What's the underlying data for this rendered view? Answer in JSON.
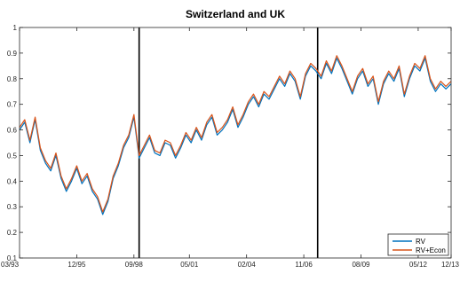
{
  "chart_data": {
    "type": "line",
    "title": "Switzerland and UK",
    "xlabel": "",
    "ylabel": "",
    "ylim": [
      0.1,
      1.0
    ],
    "yticks": [
      0.1,
      0.2,
      0.3,
      0.4,
      0.5,
      0.6,
      0.7,
      0.8,
      0.9,
      1
    ],
    "yticklabels": [
      "0.1",
      "0.2",
      "0.3",
      "0.4",
      "0.5",
      "0.6",
      "0.7",
      "0.8",
      "0.9",
      "1"
    ],
    "xlim": [
      "1993-03",
      "2013-12"
    ],
    "xticks": [
      "1993-03",
      "1995-12",
      "1998-09",
      "2001-05",
      "2004-02",
      "2006-11",
      "2009-08",
      "2012-05",
      "2013-12"
    ],
    "xticklabels": [
      "03/93",
      "12/95",
      "09/98",
      "05/01",
      "02/04",
      "11/06",
      "08/09",
      "05/12",
      "12/13"
    ],
    "vertical_lines": [
      "1998-12",
      "2007-07"
    ],
    "legend_position": "bottom-right",
    "grid": false,
    "series": [
      {
        "name": "RV",
        "color": "#0072BD",
        "points": [
          [
            "1993-03",
            0.6
          ],
          [
            "1993-06",
            0.63
          ],
          [
            "1993-09",
            0.55
          ],
          [
            "1993-12",
            0.64
          ],
          [
            "1994-03",
            0.52
          ],
          [
            "1994-06",
            0.47
          ],
          [
            "1994-09",
            0.44
          ],
          [
            "1994-12",
            0.5
          ],
          [
            "1995-03",
            0.41
          ],
          [
            "1995-06",
            0.36
          ],
          [
            "1995-09",
            0.4
          ],
          [
            "1995-12",
            0.45
          ],
          [
            "1996-03",
            0.39
          ],
          [
            "1996-06",
            0.42
          ],
          [
            "1996-09",
            0.36
          ],
          [
            "1996-12",
            0.33
          ],
          [
            "1997-03",
            0.27
          ],
          [
            "1997-06",
            0.32
          ],
          [
            "1997-09",
            0.41
          ],
          [
            "1997-12",
            0.46
          ],
          [
            "1998-03",
            0.53
          ],
          [
            "1998-06",
            0.57
          ],
          [
            "1998-09",
            0.65
          ],
          [
            "1998-12",
            0.49
          ],
          [
            "1999-03",
            0.53
          ],
          [
            "1999-06",
            0.57
          ],
          [
            "1999-09",
            0.51
          ],
          [
            "1999-12",
            0.5
          ],
          [
            "2000-03",
            0.55
          ],
          [
            "2000-06",
            0.54
          ],
          [
            "2000-09",
            0.49
          ],
          [
            "2000-12",
            0.53
          ],
          [
            "2001-03",
            0.58
          ],
          [
            "2001-06",
            0.55
          ],
          [
            "2001-09",
            0.6
          ],
          [
            "2001-12",
            0.56
          ],
          [
            "2002-03",
            0.62
          ],
          [
            "2002-06",
            0.65
          ],
          [
            "2002-09",
            0.58
          ],
          [
            "2002-12",
            0.6
          ],
          [
            "2003-03",
            0.63
          ],
          [
            "2003-06",
            0.68
          ],
          [
            "2003-09",
            0.61
          ],
          [
            "2003-12",
            0.65
          ],
          [
            "2004-03",
            0.7
          ],
          [
            "2004-06",
            0.73
          ],
          [
            "2004-09",
            0.69
          ],
          [
            "2004-12",
            0.74
          ],
          [
            "2005-03",
            0.72
          ],
          [
            "2005-06",
            0.76
          ],
          [
            "2005-09",
            0.8
          ],
          [
            "2005-12",
            0.77
          ],
          [
            "2006-03",
            0.82
          ],
          [
            "2006-06",
            0.79
          ],
          [
            "2006-09",
            0.72
          ],
          [
            "2006-12",
            0.81
          ],
          [
            "2007-03",
            0.85
          ],
          [
            "2007-06",
            0.83
          ],
          [
            "2007-09",
            0.8
          ],
          [
            "2007-12",
            0.86
          ],
          [
            "2008-03",
            0.82
          ],
          [
            "2008-06",
            0.88
          ],
          [
            "2008-09",
            0.84
          ],
          [
            "2008-12",
            0.79
          ],
          [
            "2009-03",
            0.74
          ],
          [
            "2009-06",
            0.8
          ],
          [
            "2009-09",
            0.83
          ],
          [
            "2009-12",
            0.77
          ],
          [
            "2010-03",
            0.8
          ],
          [
            "2010-06",
            0.7
          ],
          [
            "2010-09",
            0.78
          ],
          [
            "2010-12",
            0.82
          ],
          [
            "2011-03",
            0.79
          ],
          [
            "2011-06",
            0.84
          ],
          [
            "2011-09",
            0.73
          ],
          [
            "2011-12",
            0.8
          ],
          [
            "2012-03",
            0.85
          ],
          [
            "2012-06",
            0.83
          ],
          [
            "2012-09",
            0.88
          ],
          [
            "2012-12",
            0.79
          ],
          [
            "2013-03",
            0.75
          ],
          [
            "2013-06",
            0.78
          ],
          [
            "2013-09",
            0.76
          ],
          [
            "2013-12",
            0.78
          ]
        ]
      },
      {
        "name": "RV+Econ",
        "color": "#D95319",
        "points": [
          [
            "1993-03",
            0.61
          ],
          [
            "1993-06",
            0.64
          ],
          [
            "1993-09",
            0.56
          ],
          [
            "1993-12",
            0.65
          ],
          [
            "1994-03",
            0.53
          ],
          [
            "1994-06",
            0.48
          ],
          [
            "1994-09",
            0.45
          ],
          [
            "1994-12",
            0.51
          ],
          [
            "1995-03",
            0.42
          ],
          [
            "1995-06",
            0.37
          ],
          [
            "1995-09",
            0.41
          ],
          [
            "1995-12",
            0.46
          ],
          [
            "1996-03",
            0.4
          ],
          [
            "1996-06",
            0.43
          ],
          [
            "1996-09",
            0.37
          ],
          [
            "1996-12",
            0.34
          ],
          [
            "1997-03",
            0.28
          ],
          [
            "1997-06",
            0.33
          ],
          [
            "1997-09",
            0.42
          ],
          [
            "1997-12",
            0.47
          ],
          [
            "1998-03",
            0.54
          ],
          [
            "1998-06",
            0.58
          ],
          [
            "1998-09",
            0.66
          ],
          [
            "1998-12",
            0.5
          ],
          [
            "1999-03",
            0.54
          ],
          [
            "1999-06",
            0.58
          ],
          [
            "1999-09",
            0.52
          ],
          [
            "1999-12",
            0.51
          ],
          [
            "2000-03",
            0.56
          ],
          [
            "2000-06",
            0.55
          ],
          [
            "2000-09",
            0.5
          ],
          [
            "2000-12",
            0.54
          ],
          [
            "2001-03",
            0.59
          ],
          [
            "2001-06",
            0.56
          ],
          [
            "2001-09",
            0.61
          ],
          [
            "2001-12",
            0.57
          ],
          [
            "2002-03",
            0.63
          ],
          [
            "2002-06",
            0.66
          ],
          [
            "2002-09",
            0.59
          ],
          [
            "2002-12",
            0.61
          ],
          [
            "2003-03",
            0.64
          ],
          [
            "2003-06",
            0.69
          ],
          [
            "2003-09",
            0.62
          ],
          [
            "2003-12",
            0.66
          ],
          [
            "2004-03",
            0.71
          ],
          [
            "2004-06",
            0.74
          ],
          [
            "2004-09",
            0.7
          ],
          [
            "2004-12",
            0.75
          ],
          [
            "2005-03",
            0.73
          ],
          [
            "2005-06",
            0.77
          ],
          [
            "2005-09",
            0.81
          ],
          [
            "2005-12",
            0.78
          ],
          [
            "2006-03",
            0.83
          ],
          [
            "2006-06",
            0.8
          ],
          [
            "2006-09",
            0.73
          ],
          [
            "2006-12",
            0.82
          ],
          [
            "2007-03",
            0.86
          ],
          [
            "2007-06",
            0.84
          ],
          [
            "2007-09",
            0.81
          ],
          [
            "2007-12",
            0.87
          ],
          [
            "2008-03",
            0.83
          ],
          [
            "2008-06",
            0.89
          ],
          [
            "2008-09",
            0.85
          ],
          [
            "2008-12",
            0.8
          ],
          [
            "2009-03",
            0.75
          ],
          [
            "2009-06",
            0.81
          ],
          [
            "2009-09",
            0.84
          ],
          [
            "2009-12",
            0.78
          ],
          [
            "2010-03",
            0.81
          ],
          [
            "2010-06",
            0.71
          ],
          [
            "2010-09",
            0.79
          ],
          [
            "2010-12",
            0.83
          ],
          [
            "2011-03",
            0.8
          ],
          [
            "2011-06",
            0.85
          ],
          [
            "2011-09",
            0.74
          ],
          [
            "2011-12",
            0.81
          ],
          [
            "2012-03",
            0.86
          ],
          [
            "2012-06",
            0.84
          ],
          [
            "2012-09",
            0.89
          ],
          [
            "2012-12",
            0.8
          ],
          [
            "2013-03",
            0.76
          ],
          [
            "2013-06",
            0.79
          ],
          [
            "2013-09",
            0.77
          ],
          [
            "2013-12",
            0.79
          ]
        ]
      }
    ]
  }
}
